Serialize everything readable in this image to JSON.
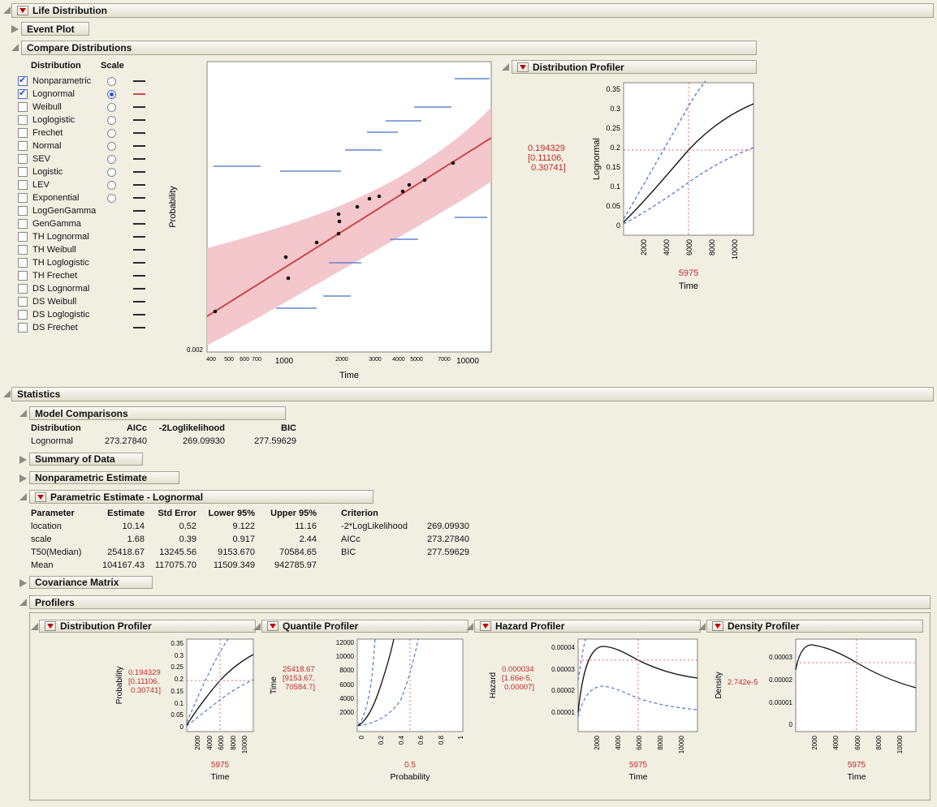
{
  "titles": {
    "life_distribution": "Life Distribution",
    "event_plot": "Event Plot",
    "compare_distributions": "Compare Distributions",
    "distribution_profiler": "Distribution Profiler",
    "statistics": "Statistics",
    "model_comparisons": "Model Comparisons",
    "summary_of_data": "Summary of Data",
    "nonparametric_estimate": "Nonparametric Estimate",
    "parametric_estimate": "Parametric Estimate - Lognormal",
    "covariance_matrix": "Covariance Matrix",
    "profilers": "Profilers",
    "quantile_profiler": "Quantile Profiler",
    "hazard_profiler": "Hazard Profiler",
    "density_profiler": "Density Profiler"
  },
  "compare": {
    "col_distribution": "Distribution",
    "col_scale": "Scale",
    "rows": [
      {
        "label": "Nonparametric",
        "checked": true,
        "radio": true,
        "selected": false,
        "color": "#2a2a2a"
      },
      {
        "label": "Lognormal",
        "checked": true,
        "radio": true,
        "selected": true,
        "color": "#cc4848"
      },
      {
        "label": "Weibull",
        "checked": false,
        "radio": true,
        "selected": false,
        "color": "#2a2a2a"
      },
      {
        "label": "Loglogistic",
        "checked": false,
        "radio": true,
        "selected": false,
        "color": "#2a2a2a"
      },
      {
        "label": "Frechet",
        "checked": false,
        "radio": true,
        "selected": false,
        "color": "#2a2a2a"
      },
      {
        "label": "Normal",
        "checked": false,
        "radio": true,
        "selected": false,
        "color": "#2a2a2a"
      },
      {
        "label": "SEV",
        "checked": false,
        "radio": true,
        "selected": false,
        "color": "#2a2a2a"
      },
      {
        "label": "Logistic",
        "checked": false,
        "radio": true,
        "selected": false,
        "color": "#2a2a2a"
      },
      {
        "label": "LEV",
        "checked": false,
        "radio": true,
        "selected": false,
        "color": "#2a2a2a"
      },
      {
        "label": "Exponential",
        "checked": false,
        "radio": true,
        "selected": false,
        "color": "#2a2a2a"
      },
      {
        "label": "LogGenGamma",
        "checked": false,
        "radio": false,
        "selected": false,
        "color": "#2a2a2a"
      },
      {
        "label": "GenGamma",
        "checked": false,
        "radio": false,
        "selected": false,
        "color": "#2a2a2a"
      },
      {
        "label": "TH Lognormal",
        "checked": false,
        "radio": false,
        "selected": false,
        "color": "#2a2a2a"
      },
      {
        "label": "TH Weibull",
        "checked": false,
        "radio": false,
        "selected": false,
        "color": "#2a2a2a"
      },
      {
        "label": "TH Loglogistic",
        "checked": false,
        "radio": false,
        "selected": false,
        "color": "#2a2a2a"
      },
      {
        "label": "TH Frechet",
        "checked": false,
        "radio": false,
        "selected": false,
        "color": "#2a2a2a"
      },
      {
        "label": "DS Lognormal",
        "checked": false,
        "radio": false,
        "selected": false,
        "color": "#2a2a2a"
      },
      {
        "label": "DS Weibull",
        "checked": false,
        "radio": false,
        "selected": false,
        "color": "#2a2a2a"
      },
      {
        "label": "DS Loglogistic",
        "checked": false,
        "radio": false,
        "selected": false,
        "color": "#2a2a2a"
      },
      {
        "label": "DS Frechet",
        "checked": false,
        "radio": false,
        "selected": false,
        "color": "#2a2a2a"
      }
    ]
  },
  "model_comparisons": {
    "headers": {
      "distribution": "Distribution",
      "aicc": "AICc",
      "loglik": "-2Loglikelihood",
      "bic": "BIC"
    },
    "rows": [
      {
        "distribution": "Lognormal",
        "aicc": "273.27840",
        "loglik": "269.09930",
        "bic": "277.59629"
      }
    ]
  },
  "parametric_estimate": {
    "headers": {
      "parameter": "Parameter",
      "estimate": "Estimate",
      "std_error": "Std Error",
      "lower": "Lower 95%",
      "upper": "Upper 95%",
      "criterion": "Criterion"
    },
    "rows": [
      {
        "parameter": "location",
        "estimate": "10.14",
        "std_error": "0.52",
        "lower": "9.122",
        "upper": "11.16",
        "criterion": "-2*LogLikelihood",
        "criterion_value": "269.09930"
      },
      {
        "parameter": "scale",
        "estimate": "1.68",
        "std_error": "0.39",
        "lower": "0.917",
        "upper": "2.44",
        "criterion": "AICc",
        "criterion_value": "273.27840"
      },
      {
        "parameter": "T50(Median)",
        "estimate": "25418.67",
        "std_error": "13245.56",
        "lower": "9153.670",
        "upper": "70584.65",
        "criterion": "BIC",
        "criterion_value": "277.59629"
      },
      {
        "parameter": "Mean",
        "estimate": "104167.43",
        "std_error": "117075.70",
        "lower": "11509.349",
        "upper": "942785.97",
        "criterion": "",
        "criterion_value": ""
      }
    ]
  },
  "charts": {
    "probability_plot": {
      "type": "scatter",
      "x_scale": "log",
      "xlabel": "Time",
      "ylabel": "Probability",
      "y_tick": "0.002",
      "x_ticks_minor": [
        "400",
        "500",
        "600",
        "700",
        "2000",
        "3000",
        "4000",
        "5000",
        "7000"
      ],
      "x_ticks_major": [
        "1000",
        "10000"
      ],
      "series": [
        {
          "name": "lognormal-fit-line",
          "color": "#cc3a3a"
        },
        {
          "name": "lognormal-confidence-band",
          "color": "#f3c7cb"
        },
        {
          "name": "nonparametric-ci-segments",
          "color": "#6285d2"
        },
        {
          "name": "failure-points",
          "color": "#141414"
        }
      ]
    },
    "profiler_distribution_top": {
      "type": "line",
      "ylabel": "Lognormal",
      "xlabel": "Time",
      "current_value": "0.194329",
      "ci_line1": "[0.11106,",
      "ci_line2": "0.30741]",
      "current_x": "5975",
      "y_ticks": [
        "0.35",
        "0.3",
        "0.25",
        "0.2",
        "0.15",
        "0.1",
        "0.05",
        "0"
      ],
      "x_ticks": [
        "2000",
        "4000",
        "6000",
        "8000",
        "10000"
      ]
    },
    "profiler_distribution": {
      "type": "line",
      "ylabel": "Probability",
      "xlabel": "Time",
      "current_value": "0.194329",
      "ci_line1": "[0.11106,",
      "ci_line2": "0.30741]",
      "current_x": "5975",
      "y_ticks": [
        "0.35",
        "0.3",
        "0.25",
        "0.2",
        "0.15",
        "0.1",
        "0.05",
        "0"
      ],
      "x_ticks": [
        "2000",
        "4000",
        "6000",
        "8000",
        "10000"
      ]
    },
    "profiler_quantile": {
      "type": "line",
      "ylabel": "Time",
      "xlabel": "Probability",
      "current_value": "25418.67",
      "ci_line1": "[9153.67,",
      "ci_line2": "70584.7]",
      "current_x": "0.5",
      "y_ticks": [
        "12000",
        "10000",
        "8000",
        "6000",
        "4000",
        "2000"
      ],
      "x_ticks": [
        "0",
        "0.2",
        "0.4",
        "0.6",
        "0.8",
        "1"
      ]
    },
    "profiler_hazard": {
      "type": "line",
      "ylabel": "Hazard",
      "xlabel": "Time",
      "current_value": "0.000034",
      "ci_line1": "[1.66e-5,",
      "ci_line2": "0.00007]",
      "current_x": "5975",
      "y_ticks": [
        "0.00004",
        "0.00003",
        "0.00002",
        "0.00001"
      ],
      "x_ticks": [
        "2000",
        "4000",
        "6000",
        "8000",
        "10000"
      ]
    },
    "profiler_density": {
      "type": "line",
      "ylabel": "Density",
      "xlabel": "Time",
      "current_value": "2.742e-5",
      "current_x": "5975",
      "y_ticks": [
        "0.00003",
        "0.00002",
        "0.00001",
        "0"
      ],
      "x_ticks": [
        "2000",
        "4000",
        "6000",
        "8000",
        "10000"
      ]
    }
  }
}
